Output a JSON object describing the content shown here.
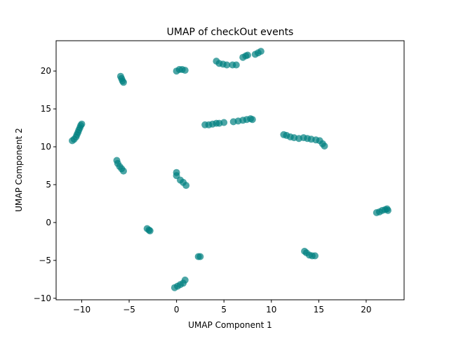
{
  "chart_data": {
    "type": "scatter",
    "title": "UMAP of checkOut events",
    "xlabel": "UMAP Component 1",
    "ylabel": "UMAP Component 2",
    "xlim": [
      -12.7,
      24.0
    ],
    "ylim": [
      -10.2,
      24.0
    ],
    "xticks": [
      -10,
      -5,
      0,
      5,
      10,
      15,
      20
    ],
    "yticks": [
      -10,
      -5,
      0,
      5,
      10,
      15,
      20
    ],
    "xtick_labels": [
      "−10",
      "−5",
      "0",
      "5",
      "10",
      "15",
      "20"
    ],
    "ytick_labels": [
      "−10",
      "−5",
      "0",
      "5",
      "10",
      "15",
      "20"
    ],
    "grid": false,
    "marker_color": "#008080",
    "marker_alpha": 0.7,
    "points": [
      {
        "x": -11.0,
        "y": 10.8
      },
      {
        "x": -10.8,
        "y": 11.0
      },
      {
        "x": -10.6,
        "y": 11.3
      },
      {
        "x": -10.5,
        "y": 11.6
      },
      {
        "x": -10.4,
        "y": 11.9
      },
      {
        "x": -10.3,
        "y": 12.2
      },
      {
        "x": -10.2,
        "y": 12.5
      },
      {
        "x": -10.1,
        "y": 12.8
      },
      {
        "x": -10.0,
        "y": 13.0
      },
      {
        "x": -5.9,
        "y": 19.3
      },
      {
        "x": -5.8,
        "y": 19.0
      },
      {
        "x": -5.7,
        "y": 18.7
      },
      {
        "x": -5.6,
        "y": 18.5
      },
      {
        "x": 0.0,
        "y": 20.0
      },
      {
        "x": 0.3,
        "y": 20.2
      },
      {
        "x": 0.6,
        "y": 20.2
      },
      {
        "x": 0.9,
        "y": 20.1
      },
      {
        "x": 4.2,
        "y": 21.3
      },
      {
        "x": 4.5,
        "y": 21.0
      },
      {
        "x": 4.9,
        "y": 20.9
      },
      {
        "x": 5.3,
        "y": 20.8
      },
      {
        "x": 5.9,
        "y": 20.8
      },
      {
        "x": 6.3,
        "y": 20.8
      },
      {
        "x": 7.0,
        "y": 21.8
      },
      {
        "x": 7.3,
        "y": 22.0
      },
      {
        "x": 7.5,
        "y": 22.1
      },
      {
        "x": 8.3,
        "y": 22.2
      },
      {
        "x": 8.6,
        "y": 22.4
      },
      {
        "x": 8.9,
        "y": 22.6
      },
      {
        "x": 3.0,
        "y": 12.9
      },
      {
        "x": 3.4,
        "y": 12.9
      },
      {
        "x": 3.8,
        "y": 13.0
      },
      {
        "x": 4.2,
        "y": 13.1
      },
      {
        "x": 4.5,
        "y": 13.1
      },
      {
        "x": 5.0,
        "y": 13.2
      },
      {
        "x": 6.0,
        "y": 13.3
      },
      {
        "x": 6.5,
        "y": 13.4
      },
      {
        "x": 7.0,
        "y": 13.5
      },
      {
        "x": 7.4,
        "y": 13.6
      },
      {
        "x": 7.8,
        "y": 13.7
      },
      {
        "x": 8.0,
        "y": 13.6
      },
      {
        "x": 11.3,
        "y": 11.6
      },
      {
        "x": 11.6,
        "y": 11.5
      },
      {
        "x": 12.0,
        "y": 11.3
      },
      {
        "x": 12.4,
        "y": 11.2
      },
      {
        "x": 12.9,
        "y": 11.1
      },
      {
        "x": 13.4,
        "y": 11.2
      },
      {
        "x": 13.8,
        "y": 11.1
      },
      {
        "x": 14.2,
        "y": 11.0
      },
      {
        "x": 14.7,
        "y": 10.9
      },
      {
        "x": 15.1,
        "y": 10.8
      },
      {
        "x": 15.4,
        "y": 10.4
      },
      {
        "x": 15.6,
        "y": 10.1
      },
      {
        "x": -6.3,
        "y": 8.2
      },
      {
        "x": -6.2,
        "y": 7.8
      },
      {
        "x": -6.0,
        "y": 7.4
      },
      {
        "x": -5.8,
        "y": 7.1
      },
      {
        "x": -5.6,
        "y": 6.8
      },
      {
        "x": 0.0,
        "y": 6.6
      },
      {
        "x": 0.0,
        "y": 6.2
      },
      {
        "x": 0.4,
        "y": 5.6
      },
      {
        "x": 0.7,
        "y": 5.3
      },
      {
        "x": 1.0,
        "y": 4.9
      },
      {
        "x": -3.1,
        "y": -0.8
      },
      {
        "x": -2.9,
        "y": -1.0
      },
      {
        "x": -2.8,
        "y": -1.1
      },
      {
        "x": 2.3,
        "y": -4.5
      },
      {
        "x": 2.5,
        "y": -4.5
      },
      {
        "x": -0.2,
        "y": -8.6
      },
      {
        "x": 0.1,
        "y": -8.4
      },
      {
        "x": 0.4,
        "y": -8.2
      },
      {
        "x": 0.7,
        "y": -8.0
      },
      {
        "x": 0.9,
        "y": -7.6
      },
      {
        "x": 13.5,
        "y": -3.8
      },
      {
        "x": 13.7,
        "y": -4.0
      },
      {
        "x": 14.0,
        "y": -4.3
      },
      {
        "x": 14.3,
        "y": -4.4
      },
      {
        "x": 14.6,
        "y": -4.4
      },
      {
        "x": 21.1,
        "y": 1.3
      },
      {
        "x": 21.4,
        "y": 1.4
      },
      {
        "x": 21.7,
        "y": 1.6
      },
      {
        "x": 22.0,
        "y": 1.7
      },
      {
        "x": 22.2,
        "y": 1.8
      },
      {
        "x": 22.3,
        "y": 1.6
      }
    ]
  }
}
